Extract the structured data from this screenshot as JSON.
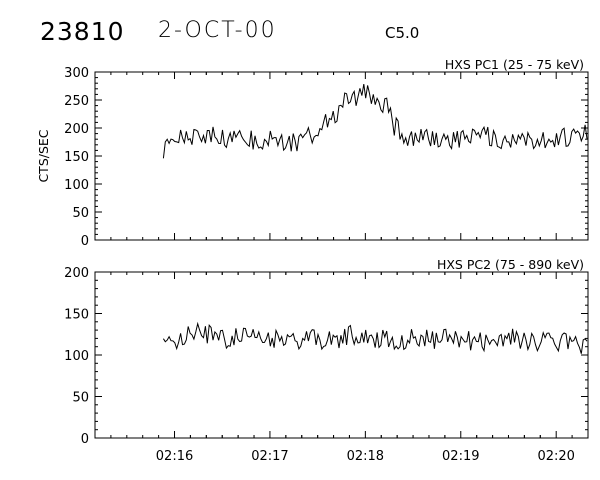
{
  "header": {
    "event_id": "23810",
    "date": "2-OCT-00",
    "flare_class": "C5.0"
  },
  "chart_data": [
    {
      "type": "line",
      "title": "HXS PC1 (25 - 75 keV)",
      "ylabel": "CTS/SEC",
      "xlabel": "",
      "ylim": [
        0,
        300
      ],
      "yticks": [
        "0",
        "50",
        "100",
        "150",
        "200",
        "250",
        "300"
      ],
      "xlim": [
        "02:15:10",
        "02:20:20"
      ],
      "xticks": [
        "02:16",
        "02:17",
        "02:18",
        "02:19",
        "02:20"
      ],
      "series": [
        {
          "x": [
            "02:15:53",
            "02:16:03",
            "02:16:13",
            "02:16:23",
            "02:16:33",
            "02:16:43",
            "02:16:53",
            "02:17:03",
            "02:17:13",
            "02:17:23",
            "02:17:33",
            "02:17:38",
            "02:17:43",
            "02:17:48",
            "02:17:53",
            "02:17:58",
            "02:18:03",
            "02:18:08",
            "02:18:13",
            "02:18:18",
            "02:18:23",
            "02:18:33",
            "02:18:43",
            "02:18:53",
            "02:19:03",
            "02:19:13",
            "02:19:23",
            "02:19:33",
            "02:19:43",
            "02:19:53",
            "02:20:03",
            "02:20:13",
            "02:20:20"
          ],
          "y": [
            160,
            185,
            182,
            188,
            178,
            184,
            175,
            178,
            172,
            182,
            200,
            218,
            232,
            248,
            255,
            262,
            258,
            250,
            238,
            205,
            188,
            182,
            185,
            180,
            184,
            186,
            182,
            178,
            181,
            180,
            185,
            182,
            190
          ]
        }
      ]
    },
    {
      "type": "line",
      "title": "HXS PC2 (75 - 890 keV)",
      "ylabel": "",
      "xlabel": "",
      "ylim": [
        0,
        200
      ],
      "yticks": [
        "0",
        "50",
        "100",
        "150",
        "200"
      ],
      "xlim": [
        "02:15:10",
        "02:20:20"
      ],
      "xticks": [
        "02:16",
        "02:17",
        "02:18",
        "02:19",
        "02:20"
      ],
      "series": [
        {
          "x": [
            "02:15:53",
            "02:16:03",
            "02:16:13",
            "02:16:23",
            "02:16:33",
            "02:16:43",
            "02:16:53",
            "02:17:03",
            "02:17:13",
            "02:17:23",
            "02:17:33",
            "02:17:43",
            "02:17:53",
            "02:18:03",
            "02:18:13",
            "02:18:23",
            "02:18:33",
            "02:18:43",
            "02:18:53",
            "02:19:03",
            "02:19:13",
            "02:19:23",
            "02:19:33",
            "02:19:43",
            "02:19:53",
            "02:20:03",
            "02:20:13",
            "02:20:20"
          ],
          "y": [
            125,
            118,
            128,
            124,
            120,
            122,
            118,
            120,
            116,
            122,
            115,
            120,
            125,
            118,
            121,
            117,
            122,
            119,
            120,
            118,
            116,
            121,
            120,
            118,
            115,
            117,
            112,
            115
          ]
        }
      ]
    }
  ]
}
